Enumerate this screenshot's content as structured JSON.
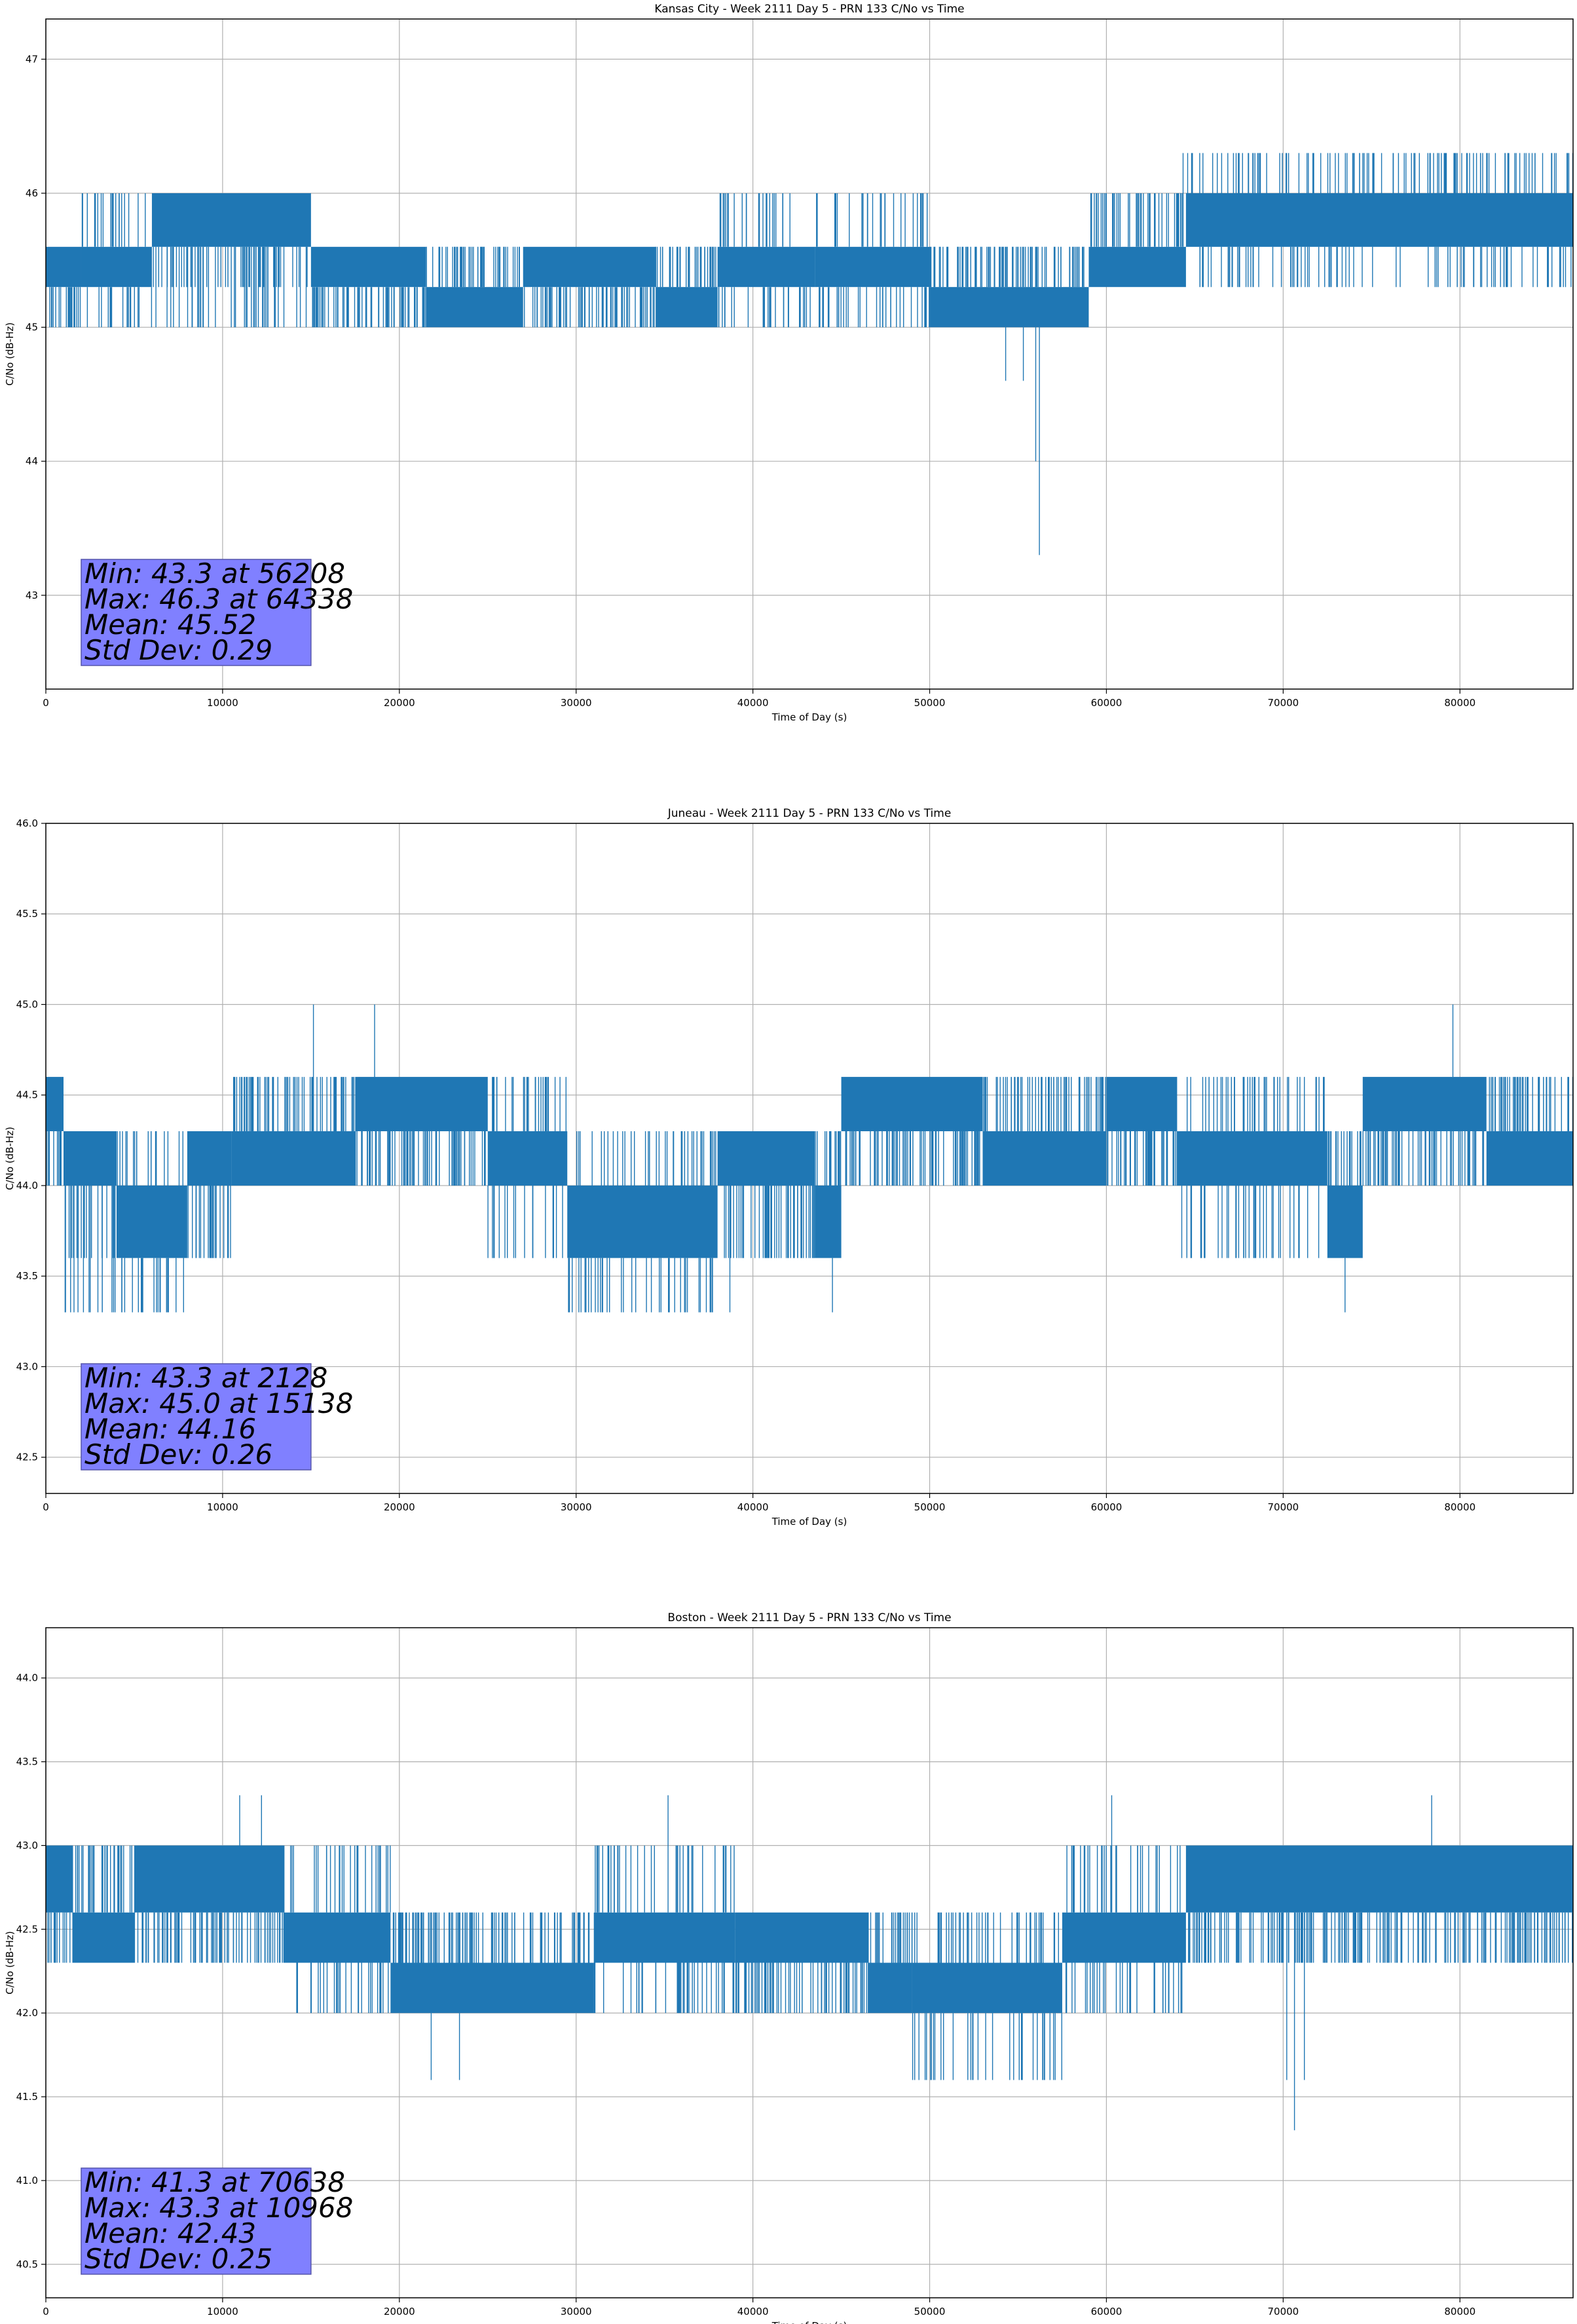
{
  "colors": {
    "series": "#1f77b4",
    "grid": "#b0b0b0",
    "statbox_fill": "#8080ff",
    "statbox_edge": "#5555aa"
  },
  "chart_data": [
    {
      "type": "line",
      "title": "Kansas City - Week 2111 Day 5 - PRN 133 C/No vs Time",
      "xlabel": "Time of Day (s)",
      "ylabel": "C/No (dB-Hz)",
      "xlim": [
        0,
        86400
      ],
      "ylim": [
        42.3,
        47.3
      ],
      "xticks": [
        0,
        10000,
        20000,
        30000,
        40000,
        50000,
        60000,
        70000,
        80000
      ],
      "yticks": [
        43,
        44,
        45,
        46,
        47
      ],
      "xtick_labels": [
        "0",
        "10000",
        "20000",
        "30000",
        "40000",
        "50000",
        "60000",
        "70000",
        "80000"
      ],
      "ytick_labels": [
        "43",
        "44",
        "45",
        "46",
        "47"
      ],
      "grid": true,
      "segments": [
        {
          "x": [
            0,
            2000
          ],
          "base": [
            45.3,
            45.6
          ],
          "alt": [
            45.0
          ]
        },
        {
          "x": [
            2000,
            6000
          ],
          "base": [
            45.3,
            45.6
          ],
          "alt": [
            45.0,
            46.0
          ]
        },
        {
          "x": [
            6000,
            15000
          ],
          "base": [
            45.6,
            46.0
          ],
          "alt": [
            45.3,
            45.0
          ]
        },
        {
          "x": [
            15000,
            21500
          ],
          "base": [
            45.3,
            45.6
          ],
          "alt": [
            45.0
          ]
        },
        {
          "x": [
            21500,
            27000
          ],
          "base": [
            45.0,
            45.3
          ],
          "alt": [
            45.6
          ]
        },
        {
          "x": [
            27000,
            34500
          ],
          "base": [
            45.3,
            45.6
          ],
          "alt": [
            45.0
          ]
        },
        {
          "x": [
            34500,
            38000
          ],
          "base": [
            45.0,
            45.3
          ],
          "alt": [
            45.6
          ]
        },
        {
          "x": [
            38000,
            43500
          ],
          "base": [
            45.3,
            45.6
          ],
          "alt": [
            45.0,
            46.0
          ]
        },
        {
          "x": [
            43500,
            50000
          ],
          "base": [
            45.3,
            45.6
          ],
          "alt": [
            46.0,
            45.0
          ]
        },
        {
          "x": [
            50000,
            59000
          ],
          "base": [
            45.0,
            45.3
          ],
          "alt": [
            45.6
          ]
        },
        {
          "x": [
            59000,
            64500
          ],
          "base": [
            45.3,
            45.6
          ],
          "alt": [
            46.0
          ]
        },
        {
          "x": [
            64500,
            86400
          ],
          "base": [
            45.6,
            46.0
          ],
          "alt": [
            46.3,
            45.3
          ]
        }
      ],
      "spikes": [
        [
          54300,
          44.6
        ],
        [
          55300,
          44.6
        ],
        [
          56000,
          44.0
        ],
        [
          56208,
          43.3
        ],
        [
          64338,
          46.3
        ]
      ],
      "stats": [
        "Min: 43.3 at 56208",
        "Max: 46.3 at 64338",
        "Mean: 45.52",
        "Std Dev: 0.29"
      ]
    },
    {
      "type": "line",
      "title": "Juneau - Week 2111 Day 5 - PRN 133 C/No vs Time",
      "xlabel": "Time of Day (s)",
      "ylabel": "C/No (dB-Hz)",
      "xlim": [
        0,
        86400
      ],
      "ylim": [
        42.3,
        46.0
      ],
      "xticks": [
        0,
        10000,
        20000,
        30000,
        40000,
        50000,
        60000,
        70000,
        80000
      ],
      "yticks": [
        42.5,
        43.0,
        43.5,
        44.0,
        44.5,
        45.0,
        45.5,
        46.0
      ],
      "xtick_labels": [
        "0",
        "10000",
        "20000",
        "30000",
        "40000",
        "50000",
        "60000",
        "70000",
        "80000"
      ],
      "ytick_labels": [
        "42.5",
        "43.0",
        "43.5",
        "44.0",
        "44.5",
        "45.0",
        "45.5",
        "46.0"
      ],
      "grid": true,
      "segments": [
        {
          "x": [
            0,
            1000
          ],
          "base": [
            44.3,
            44.6
          ],
          "alt": [
            44.0
          ]
        },
        {
          "x": [
            1000,
            4000
          ],
          "base": [
            44.0,
            44.3
          ],
          "alt": [
            43.6,
            43.3
          ]
        },
        {
          "x": [
            4000,
            8000
          ],
          "base": [
            43.6,
            44.0
          ],
          "alt": [
            43.3,
            44.3
          ]
        },
        {
          "x": [
            8000,
            10500
          ],
          "base": [
            44.0,
            44.3
          ],
          "alt": [
            43.6
          ]
        },
        {
          "x": [
            10500,
            17500
          ],
          "base": [
            44.0,
            44.3
          ],
          "alt": [
            44.6
          ]
        },
        {
          "x": [
            17500,
            25000
          ],
          "base": [
            44.3,
            44.6
          ],
          "alt": [
            44.0
          ]
        },
        {
          "x": [
            25000,
            29500
          ],
          "base": [
            44.0,
            44.3
          ],
          "alt": [
            43.6,
            44.6
          ]
        },
        {
          "x": [
            29500,
            38000
          ],
          "base": [
            43.6,
            44.0
          ],
          "alt": [
            44.3,
            43.3
          ]
        },
        {
          "x": [
            38000,
            43500
          ],
          "base": [
            44.0,
            44.3
          ],
          "alt": [
            43.6
          ]
        },
        {
          "x": [
            43500,
            45000
          ],
          "base": [
            43.6,
            44.0
          ],
          "alt": [
            44.3
          ]
        },
        {
          "x": [
            45000,
            53000
          ],
          "base": [
            44.3,
            44.6
          ],
          "alt": [
            44.0
          ]
        },
        {
          "x": [
            53000,
            60000
          ],
          "base": [
            44.0,
            44.3
          ],
          "alt": [
            44.6
          ]
        },
        {
          "x": [
            60000,
            64000
          ],
          "base": [
            44.3,
            44.6
          ],
          "alt": [
            44.0
          ]
        },
        {
          "x": [
            64000,
            72500
          ],
          "base": [
            44.0,
            44.3
          ],
          "alt": [
            44.6,
            43.6
          ]
        },
        {
          "x": [
            72500,
            74500
          ],
          "base": [
            43.6,
            44.0
          ],
          "alt": [
            44.3
          ]
        },
        {
          "x": [
            74500,
            81500
          ],
          "base": [
            44.3,
            44.6
          ],
          "alt": [
            44.0
          ]
        },
        {
          "x": [
            81500,
            86400
          ],
          "base": [
            44.0,
            44.3
          ],
          "alt": [
            44.6
          ]
        }
      ],
      "spikes": [
        [
          2128,
          43.3
        ],
        [
          15138,
          45.0
        ],
        [
          18600,
          45.0
        ],
        [
          79600,
          45.0
        ],
        [
          73500,
          43.3
        ],
        [
          44500,
          43.3
        ],
        [
          38700,
          43.3
        ]
      ],
      "stats": [
        "Min: 43.3 at 2128",
        "Max: 45.0 at 15138",
        "Mean: 44.16",
        "Std Dev: 0.26"
      ]
    },
    {
      "type": "line",
      "title": "Boston - Week 2111 Day 5 - PRN 133 C/No vs Time",
      "xlabel": "Time of Day (s)",
      "ylabel": "C/No (dB-Hz)",
      "xlim": [
        0,
        86400
      ],
      "ylim": [
        40.3,
        44.3
      ],
      "xticks": [
        0,
        10000,
        20000,
        30000,
        40000,
        50000,
        60000,
        70000,
        80000
      ],
      "yticks": [
        40.5,
        41.0,
        41.5,
        42.0,
        42.5,
        43.0,
        43.5,
        44.0
      ],
      "xtick_labels": [
        "0",
        "10000",
        "20000",
        "30000",
        "40000",
        "50000",
        "60000",
        "70000",
        "80000"
      ],
      "ytick_labels": [
        "40.5",
        "41.0",
        "41.5",
        "42.0",
        "42.5",
        "43.0",
        "43.5",
        "44.0"
      ],
      "grid": true,
      "segments": [
        {
          "x": [
            0,
            1500
          ],
          "base": [
            42.6,
            43.0
          ],
          "alt": [
            42.3
          ]
        },
        {
          "x": [
            1500,
            5000
          ],
          "base": [
            42.3,
            42.6
          ],
          "alt": [
            43.0
          ]
        },
        {
          "x": [
            5000,
            13500
          ],
          "base": [
            42.6,
            43.0
          ],
          "alt": [
            42.3
          ]
        },
        {
          "x": [
            13500,
            19500
          ],
          "base": [
            42.3,
            42.6
          ],
          "alt": [
            43.0,
            42.0
          ]
        },
        {
          "x": [
            19500,
            31000
          ],
          "base": [
            42.0,
            42.3
          ],
          "alt": [
            42.6
          ]
        },
        {
          "x": [
            31000,
            39000
          ],
          "base": [
            42.3,
            42.6
          ],
          "alt": [
            43.0,
            42.0
          ]
        },
        {
          "x": [
            39000,
            46500
          ],
          "base": [
            42.3,
            42.6
          ],
          "alt": [
            42.0
          ]
        },
        {
          "x": [
            46500,
            49000
          ],
          "base": [
            42.0,
            42.3
          ],
          "alt": [
            42.6
          ]
        },
        {
          "x": [
            49000,
            57500
          ],
          "base": [
            42.0,
            42.3
          ],
          "alt": [
            42.6,
            41.6
          ]
        },
        {
          "x": [
            57500,
            64500
          ],
          "base": [
            42.3,
            42.6
          ],
          "alt": [
            43.0,
            42.0
          ]
        },
        {
          "x": [
            64500,
            86400
          ],
          "base": [
            42.6,
            43.0
          ],
          "alt": [
            42.3
          ]
        }
      ],
      "spikes": [
        [
          10968,
          43.3
        ],
        [
          12200,
          43.3
        ],
        [
          35200,
          43.3
        ],
        [
          60300,
          43.3
        ],
        [
          78400,
          43.3
        ],
        [
          70638,
          41.3
        ],
        [
          70200,
          41.6
        ],
        [
          71200,
          41.6
        ],
        [
          21800,
          41.6
        ],
        [
          23400,
          41.6
        ]
      ],
      "stats": [
        "Min: 41.3 at 70638",
        "Max: 43.3 at 10968",
        "Mean: 42.43",
        "Std Dev: 0.25"
      ]
    }
  ]
}
